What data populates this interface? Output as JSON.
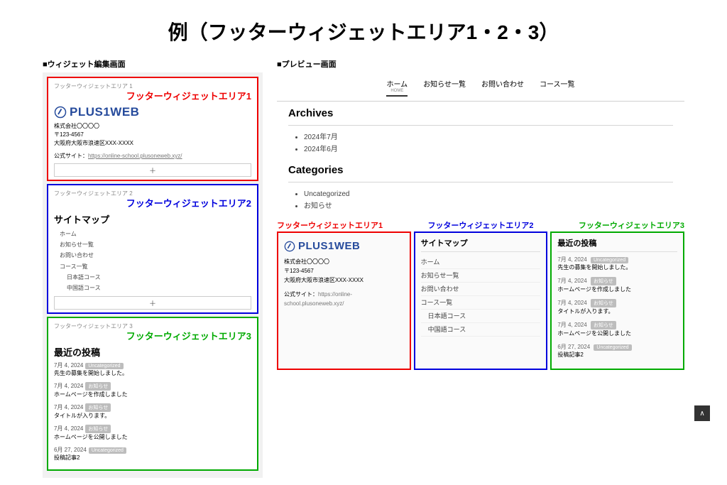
{
  "title": "例（フッターウィジェットエリア1・2・3）",
  "leftLabel": "■ウィジェット編集画面",
  "rightLabel": "■プレビュー画面",
  "colors": {
    "red": "#e00",
    "blue": "#00d",
    "green": "#0a0"
  },
  "editor": {
    "area1": {
      "tag": "フッターウィジェットエリア 1",
      "overlay": "フッターウィジェットエリア1",
      "logo": "PLUS1WEB",
      "company": "株式会社〇〇〇〇",
      "postal": "〒123-4567",
      "address": "大阪府大阪市浪速区XXX-XXXX",
      "siteLabel": "公式サイト：",
      "siteUrl": "https://online-school.plusoneweb.xyz/",
      "plusBtn": "＋"
    },
    "area2": {
      "tag": "フッターウィジェットエリア 2",
      "overlay": "フッターウィジェットエリア2",
      "heading": "サイトマップ",
      "items": [
        "ホーム",
        "お知らせ一覧",
        "お問い合わせ",
        "コース一覧",
        "日本語コース",
        "中国語コース"
      ],
      "plusBtn": "＋"
    },
    "area3": {
      "tag": "フッターウィジェットエリア 3",
      "overlay": "フッターウィジェットエリア3",
      "heading": "最近の投稿",
      "posts": [
        {
          "date": "7月 4, 2024",
          "cat": "Uncategorized",
          "title": "先生の募集を開始しました。"
        },
        {
          "date": "7月 4, 2024",
          "cat": "お知らせ",
          "title": "ホームページを作成しました"
        },
        {
          "date": "7月 4, 2024",
          "cat": "お知らせ",
          "title": "タイトルが入ります。"
        },
        {
          "date": "7月 4, 2024",
          "cat": "お知らせ",
          "title": "ホームページを公開しました"
        },
        {
          "date": "6月 27, 2024",
          "cat": "Uncategorized",
          "title": "投稿記事2"
        }
      ]
    }
  },
  "preview": {
    "nav": [
      {
        "label": "ホーム",
        "sub": "HOME",
        "active": true
      },
      {
        "label": "お知らせ一覧"
      },
      {
        "label": "お問い合わせ"
      },
      {
        "label": "コース一覧"
      }
    ],
    "archives": {
      "heading": "Archives",
      "items": [
        "2024年7月",
        "2024年6月"
      ]
    },
    "categories": {
      "heading": "Categories",
      "items": [
        "Uncategorized",
        "お知らせ"
      ]
    },
    "footLabels": [
      "フッターウィジェットエリア1",
      "フッターウィジェットエリア2",
      "フッターウィジェットエリア3"
    ],
    "foot1": {
      "logo": "PLUS1WEB",
      "company": "株式会社〇〇〇〇",
      "postal": "〒123-4567",
      "address": "大阪府大阪市浪速区XXX-XXXX",
      "siteLabel": "公式サイト：",
      "siteUrl": "https://online-school.plusoneweb.xyz/"
    },
    "foot2": {
      "heading": "サイトマップ",
      "items": [
        "ホーム",
        "お知らせ一覧",
        "お問い合わせ",
        "コース一覧",
        "日本語コース",
        "中国語コース"
      ]
    },
    "foot3": {
      "heading": "最近の投稿",
      "posts": [
        {
          "date": "7月 4, 2024",
          "cat": "Uncategorized",
          "title": "先生の募集を開始しました。"
        },
        {
          "date": "7月 4, 2024",
          "cat": "お知らせ",
          "title": "ホームページを作成しました"
        },
        {
          "date": "7月 4, 2024",
          "cat": "お知らせ",
          "title": "タイトルが入ります。"
        },
        {
          "date": "7月 4, 2024",
          "cat": "お知らせ",
          "title": "ホームページを公開しました"
        },
        {
          "date": "6月 27, 2024",
          "cat": "Uncategorized",
          "title": "投稿記事2"
        }
      ]
    },
    "scrollTop": "∧"
  }
}
